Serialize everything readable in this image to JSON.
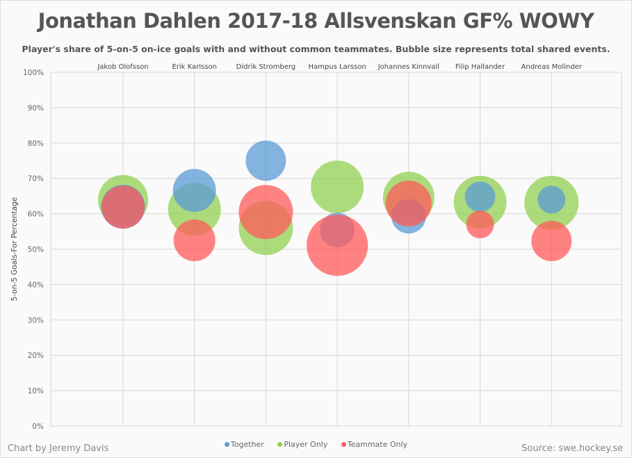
{
  "chart_data": {
    "type": "scatter",
    "title": "Jonathan Dahlen 2017-18 Allsvenskan GF% WOWY",
    "subtitle": "Player's share of 5-on-5 on-ice goals with and without common teammates. Bubble size represents total shared events.",
    "ylabel": "5-on-5 Goals-For Percentage",
    "ylim": [
      0,
      100
    ],
    "yticks": [
      "0%",
      "10%",
      "20%",
      "30%",
      "40%",
      "50%",
      "60%",
      "70%",
      "80%",
      "90%",
      "100%"
    ],
    "categories": [
      "Jakob Olofsson",
      "Erik Karlsson",
      "Didrik Stromberg",
      "Hampus Larsson",
      "Johannes Kinnvall",
      "Filip Hallander",
      "Andreas Molinder"
    ],
    "legend_position": "bottom",
    "grid": true,
    "series": [
      {
        "name": "Player Only",
        "color": "#92d050",
        "values": [
          63.9,
          61.3,
          56.0,
          67.6,
          64.6,
          63.3,
          63.1
        ],
        "events": [
          130,
          144,
          152,
          144,
          137,
          144,
          152
        ]
      },
      {
        "name": "Together",
        "color": "#5b9bd5",
        "values": [
          62.0,
          66.6,
          75.0,
          55.4,
          59.3,
          64.8,
          64.0
        ],
        "events": [
          100,
          96,
          84,
          62,
          62,
          48,
          40
        ]
      },
      {
        "name": "Teammate Only",
        "color": "#ff5a5a",
        "values": [
          61.9,
          52.5,
          60.5,
          51.1,
          62.9,
          57.0,
          52.3
        ],
        "events": [
          96,
          90,
          152,
          194,
          109,
          40,
          84
        ]
      }
    ]
  },
  "legend": [
    "Together",
    "Player Only",
    "Teammate Only"
  ],
  "credit": "Chart by Jeremy Davis",
  "source": "Source: swe.hockey.se"
}
